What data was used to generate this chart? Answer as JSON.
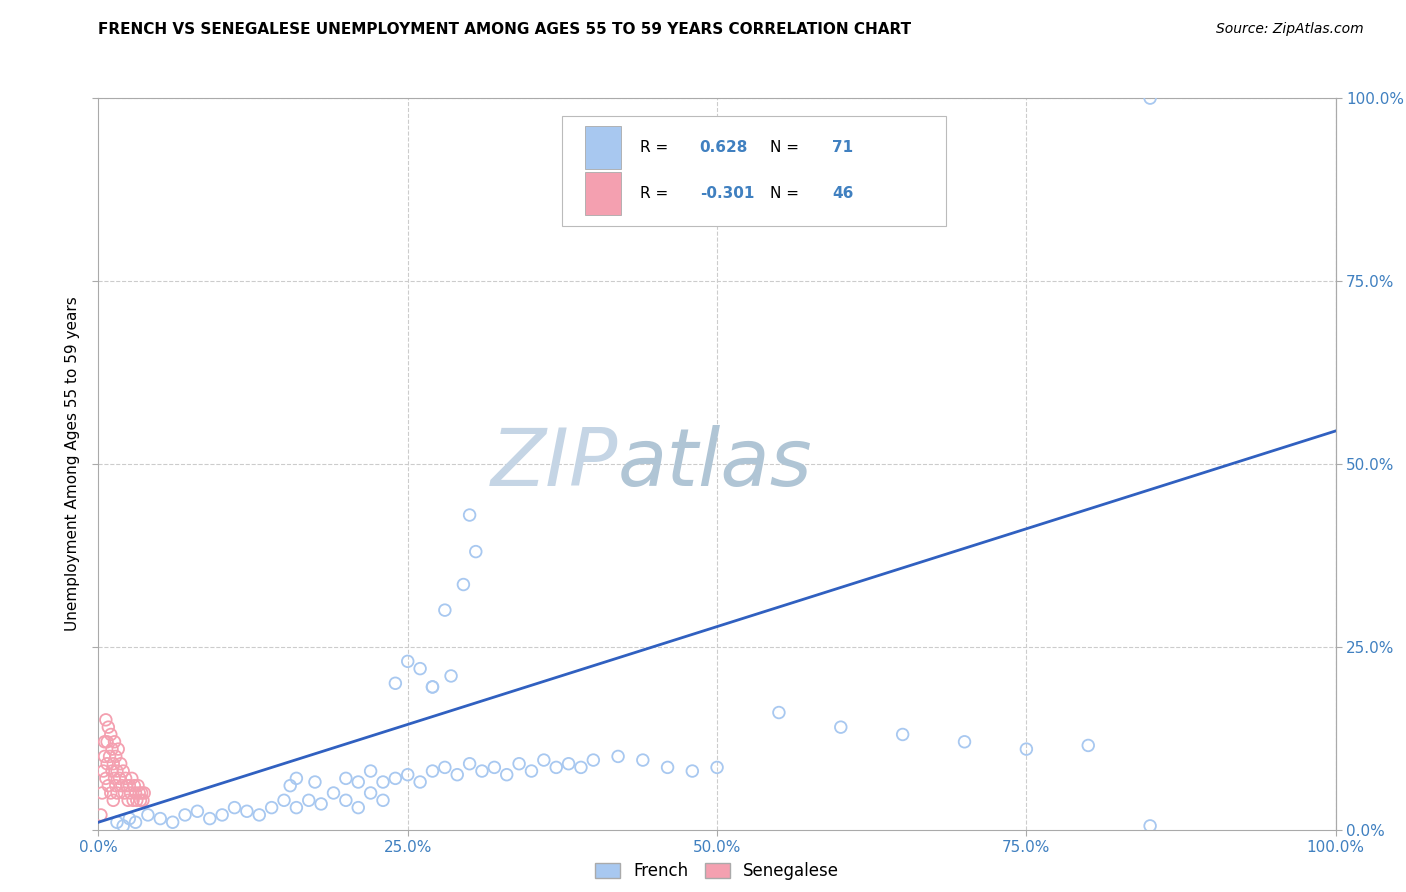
{
  "title": "FRENCH VS SENEGALESE UNEMPLOYMENT AMONG AGES 55 TO 59 YEARS CORRELATION CHART",
  "source": "Source: ZipAtlas.com",
  "ylabel": "Unemployment Among Ages 55 to 59 years",
  "xlim": [
    0.0,
    1.0
  ],
  "ylim": [
    0.0,
    1.0
  ],
  "xticks": [
    0.0,
    0.25,
    0.5,
    0.75,
    1.0
  ],
  "yticks": [
    0.0,
    0.25,
    0.5,
    0.75,
    1.0
  ],
  "xtick_labels": [
    "0.0%",
    "25.0%",
    "50.0%",
    "75.0%",
    "100.0%"
  ],
  "right_ytick_labels": [
    "0.0%",
    "25.0%",
    "50.0%",
    "75.0%",
    "100.0%"
  ],
  "french_R": 0.628,
  "french_N": 71,
  "senegalese_R": -0.301,
  "senegalese_N": 46,
  "french_color": "#a8c8f0",
  "senegalese_color": "#f4a0b0",
  "french_edge_color": "#7aaad0",
  "senegalese_edge_color": "#e080a0",
  "french_line_color": "#3060c0",
  "tick_color": "#4080c0",
  "watermark_zip_color": "#c8d8e8",
  "watermark_atlas_color": "#b0c8d8",
  "grid_color": "#cccccc",
  "regression_x0": 0.0,
  "regression_y0": 0.01,
  "regression_x1": 1.0,
  "regression_y1": 0.545,
  "title_fontsize": 11,
  "source_fontsize": 10,
  "axis_tick_fontsize": 11,
  "ylabel_fontsize": 11,
  "marker_size": 70,
  "marker_linewidth": 1.3,
  "french_scatter": [
    [
      0.015,
      0.01
    ],
    [
      0.02,
      0.005
    ],
    [
      0.025,
      0.015
    ],
    [
      0.03,
      0.01
    ],
    [
      0.04,
      0.02
    ],
    [
      0.05,
      0.015
    ],
    [
      0.06,
      0.01
    ],
    [
      0.07,
      0.02
    ],
    [
      0.08,
      0.025
    ],
    [
      0.09,
      0.015
    ],
    [
      0.1,
      0.02
    ],
    [
      0.11,
      0.03
    ],
    [
      0.12,
      0.025
    ],
    [
      0.13,
      0.02
    ],
    [
      0.14,
      0.03
    ],
    [
      0.15,
      0.04
    ],
    [
      0.16,
      0.03
    ],
    [
      0.17,
      0.04
    ],
    [
      0.18,
      0.035
    ],
    [
      0.19,
      0.05
    ],
    [
      0.2,
      0.04
    ],
    [
      0.21,
      0.03
    ],
    [
      0.22,
      0.05
    ],
    [
      0.23,
      0.04
    ],
    [
      0.155,
      0.06
    ],
    [
      0.16,
      0.07
    ],
    [
      0.175,
      0.065
    ],
    [
      0.2,
      0.07
    ],
    [
      0.21,
      0.065
    ],
    [
      0.22,
      0.08
    ],
    [
      0.23,
      0.065
    ],
    [
      0.24,
      0.07
    ],
    [
      0.25,
      0.075
    ],
    [
      0.26,
      0.065
    ],
    [
      0.27,
      0.08
    ],
    [
      0.28,
      0.085
    ],
    [
      0.29,
      0.075
    ],
    [
      0.3,
      0.09
    ],
    [
      0.31,
      0.08
    ],
    [
      0.32,
      0.085
    ],
    [
      0.33,
      0.075
    ],
    [
      0.34,
      0.09
    ],
    [
      0.35,
      0.08
    ],
    [
      0.36,
      0.095
    ],
    [
      0.37,
      0.085
    ],
    [
      0.38,
      0.09
    ],
    [
      0.39,
      0.085
    ],
    [
      0.4,
      0.095
    ],
    [
      0.42,
      0.1
    ],
    [
      0.44,
      0.095
    ],
    [
      0.46,
      0.085
    ],
    [
      0.48,
      0.08
    ],
    [
      0.5,
      0.085
    ],
    [
      0.24,
      0.2
    ],
    [
      0.26,
      0.22
    ],
    [
      0.27,
      0.195
    ],
    [
      0.285,
      0.21
    ],
    [
      0.25,
      0.23
    ],
    [
      0.27,
      0.195
    ],
    [
      0.28,
      0.3
    ],
    [
      0.295,
      0.335
    ],
    [
      0.305,
      0.38
    ],
    [
      0.3,
      0.43
    ],
    [
      0.55,
      0.16
    ],
    [
      0.6,
      0.14
    ],
    [
      0.65,
      0.13
    ],
    [
      0.7,
      0.12
    ],
    [
      0.75,
      0.11
    ],
    [
      0.8,
      0.115
    ],
    [
      0.85,
      0.005
    ],
    [
      0.85,
      1.0
    ]
  ],
  "senegalese_scatter": [
    [
      0.002,
      0.02
    ],
    [
      0.003,
      0.05
    ],
    [
      0.004,
      0.08
    ],
    [
      0.005,
      0.1
    ],
    [
      0.005,
      0.12
    ],
    [
      0.006,
      0.07
    ],
    [
      0.006,
      0.15
    ],
    [
      0.007,
      0.09
    ],
    [
      0.007,
      0.12
    ],
    [
      0.008,
      0.06
    ],
    [
      0.008,
      0.14
    ],
    [
      0.009,
      0.1
    ],
    [
      0.01,
      0.05
    ],
    [
      0.01,
      0.13
    ],
    [
      0.011,
      0.08
    ],
    [
      0.011,
      0.11
    ],
    [
      0.012,
      0.04
    ],
    [
      0.012,
      0.09
    ],
    [
      0.013,
      0.07
    ],
    [
      0.013,
      0.12
    ],
    [
      0.014,
      0.06
    ],
    [
      0.014,
      0.1
    ],
    [
      0.015,
      0.05
    ],
    [
      0.015,
      0.08
    ],
    [
      0.016,
      0.11
    ],
    [
      0.017,
      0.07
    ],
    [
      0.018,
      0.09
    ],
    [
      0.019,
      0.06
    ],
    [
      0.02,
      0.08
    ],
    [
      0.021,
      0.05
    ],
    [
      0.022,
      0.07
    ],
    [
      0.023,
      0.06
    ],
    [
      0.024,
      0.04
    ],
    [
      0.025,
      0.06
    ],
    [
      0.026,
      0.05
    ],
    [
      0.027,
      0.07
    ],
    [
      0.028,
      0.04
    ],
    [
      0.029,
      0.06
    ],
    [
      0.03,
      0.05
    ],
    [
      0.031,
      0.04
    ],
    [
      0.032,
      0.06
    ],
    [
      0.033,
      0.05
    ],
    [
      0.034,
      0.04
    ],
    [
      0.035,
      0.05
    ],
    [
      0.036,
      0.04
    ],
    [
      0.037,
      0.05
    ]
  ]
}
